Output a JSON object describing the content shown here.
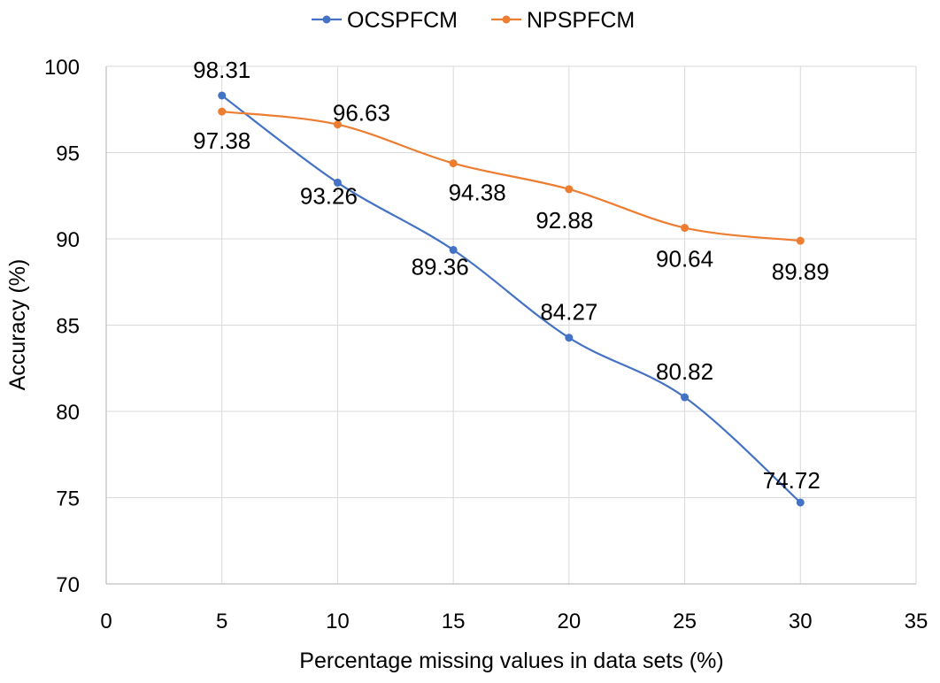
{
  "chart_data": {
    "type": "line",
    "title": "",
    "xlabel": "Percentage missing values in data sets (%)",
    "ylabel": "Accuracy (%)",
    "xlim": [
      0,
      35
    ],
    "ylim": [
      70,
      100
    ],
    "xticks": [
      0,
      5,
      10,
      15,
      20,
      25,
      30,
      35
    ],
    "yticks": [
      70,
      75,
      80,
      85,
      90,
      95,
      100
    ],
    "grid": true,
    "legend_position": "top",
    "x": [
      5,
      10,
      15,
      20,
      25,
      30
    ],
    "series": [
      {
        "name": "OCSPFCM",
        "color": "#4472C4",
        "values": [
          98.31,
          93.26,
          89.36,
          84.27,
          80.82,
          74.72
        ],
        "labels": [
          "98.31",
          "93.26",
          "89.36",
          "84.27",
          "80.82",
          "74.72"
        ]
      },
      {
        "name": "NPSPFCM",
        "color": "#ED7D31",
        "values": [
          97.38,
          96.63,
          94.38,
          92.88,
          90.64,
          89.89
        ],
        "labels": [
          "97.38",
          "96.63",
          "94.38",
          "92.88",
          "90.64",
          "89.89"
        ]
      }
    ]
  }
}
